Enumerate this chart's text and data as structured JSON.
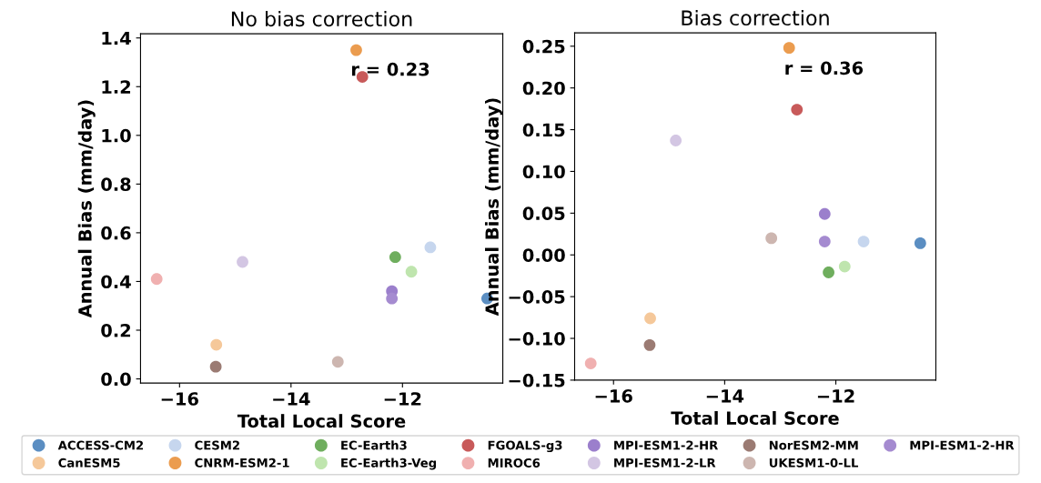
{
  "chart_data": [
    {
      "type": "scatter",
      "title": "No bias correction",
      "xlabel": "Total Local Score",
      "ylabel": "Annual Bias (mm/day)",
      "xlim": [
        -16.7,
        -10.2
      ],
      "xticks": [
        {
          "value": -16,
          "label": "−16"
        },
        {
          "value": -14,
          "label": "−14"
        },
        {
          "value": -12,
          "label": "−12"
        }
      ],
      "ylim": [
        -0.017,
        1.417
      ],
      "yticks": [
        {
          "value": 0,
          "label": "0.0"
        },
        {
          "value": 0.2,
          "label": "0.2"
        },
        {
          "value": 0.4,
          "label": "0.4"
        },
        {
          "value": 0.6,
          "label": "0.6"
        },
        {
          "value": 0.8,
          "label": "0.8"
        },
        {
          "value": 1.0,
          "label": "1.0"
        },
        {
          "value": 1.2,
          "label": "1.2"
        },
        {
          "value": 1.4,
          "label": "1.4"
        }
      ],
      "grid": false,
      "marker": "circle",
      "legend": "bottom",
      "annotations": [
        "r = 0.23"
      ],
      "series": [
        {
          "name": "ACCESS-CM2",
          "color": "#5b8ec2",
          "x": [
            -10.48
          ],
          "values": [
            0.33
          ]
        },
        {
          "name": "CanESM5",
          "color": "#f5c89a",
          "x": [
            -15.34
          ],
          "values": [
            0.14
          ]
        },
        {
          "name": "CESM2",
          "color": "#c6d6ee",
          "x": [
            -11.5
          ],
          "values": [
            0.54
          ]
        },
        {
          "name": "CNRM-ESM2-1",
          "color": "#eb9c4f",
          "x": [
            -12.83
          ],
          "values": [
            1.35
          ]
        },
        {
          "name": "EC-Earth3",
          "color": "#6fae5e",
          "x": [
            -12.13
          ],
          "values": [
            0.5
          ]
        },
        {
          "name": "EC-Earth3-Veg",
          "color": "#bfe5ae",
          "x": [
            -11.84
          ],
          "values": [
            0.44
          ]
        },
        {
          "name": "FGOALS-g3",
          "color": "#c85a5a",
          "x": [
            -12.72
          ],
          "values": [
            1.24
          ]
        },
        {
          "name": "MIROC6",
          "color": "#f0b0b0",
          "x": [
            -16.41
          ],
          "values": [
            0.41
          ]
        },
        {
          "name": "MPI-ESM1-2-HR",
          "color": "#9b7fcc",
          "x": [
            -12.19
          ],
          "values": [
            0.36
          ]
        },
        {
          "name": "MPI-ESM1-2-LR",
          "color": "#d3c6e3",
          "x": [
            -14.87
          ],
          "values": [
            0.48
          ]
        },
        {
          "name": "NorESM2-MM",
          "color": "#9b7b73",
          "x": [
            -15.35
          ],
          "values": [
            0.05
          ]
        },
        {
          "name": "UKESM1-0-LL",
          "color": "#cdb6b0",
          "x": [
            -13.16
          ],
          "values": [
            0.07
          ]
        },
        {
          "name": "MPI-ESM1-2-HR",
          "color": "#a58bd0",
          "x": [
            -12.19
          ],
          "values": [
            0.33
          ]
        }
      ]
    },
    {
      "type": "scatter",
      "title": "Bias correction",
      "xlabel": "Total Local Score",
      "ylabel": "Annual Bias (mm/day)",
      "xlim": [
        -16.7,
        -10.2
      ],
      "xticks": [
        {
          "value": -16,
          "label": "−16"
        },
        {
          "value": -14,
          "label": "−14"
        },
        {
          "value": -12,
          "label": "−12"
        }
      ],
      "ylim": [
        -0.15,
        0.266
      ],
      "yticks": [
        {
          "value": -0.15,
          "label": "−0.15"
        },
        {
          "value": -0.1,
          "label": "−0.10"
        },
        {
          "value": -0.05,
          "label": "−0.05"
        },
        {
          "value": 0,
          "label": "0.00"
        },
        {
          "value": 0.05,
          "label": "0.05"
        },
        {
          "value": 0.1,
          "label": "0.10"
        },
        {
          "value": 0.15,
          "label": "0.15"
        },
        {
          "value": 0.2,
          "label": "0.20"
        },
        {
          "value": 0.25,
          "label": "0.25"
        }
      ],
      "grid": false,
      "marker": "circle",
      "annotations": [
        "r = 0.36"
      ],
      "series": [
        {
          "color": "#5b8ec2",
          "x": [
            -10.48
          ],
          "values": [
            0.014
          ]
        },
        {
          "color": "#f5c89a",
          "x": [
            -15.34
          ],
          "values": [
            -0.076
          ]
        },
        {
          "color": "#c6d6ee",
          "x": [
            -11.5
          ],
          "values": [
            0.016
          ]
        },
        {
          "color": "#eb9c4f",
          "x": [
            -12.84
          ],
          "values": [
            0.248
          ]
        },
        {
          "color": "#6fae5e",
          "x": [
            -12.13
          ],
          "values": [
            -0.021
          ]
        },
        {
          "color": "#bfe5ae",
          "x": [
            -11.84
          ],
          "values": [
            -0.014
          ]
        },
        {
          "color": "#c85a5a",
          "x": [
            -12.7
          ],
          "values": [
            0.174
          ]
        },
        {
          "color": "#f0b0b0",
          "x": [
            -16.41
          ],
          "values": [
            -0.13
          ]
        },
        {
          "color": "#9b7fcc",
          "x": [
            -12.2
          ],
          "values": [
            0.049
          ]
        },
        {
          "color": "#d3c6e3",
          "x": [
            -14.88
          ],
          "values": [
            0.137
          ]
        },
        {
          "color": "#9b7b73",
          "x": [
            -15.35
          ],
          "values": [
            -0.108
          ]
        },
        {
          "color": "#cdb6b0",
          "x": [
            -13.16
          ],
          "values": [
            0.02
          ]
        },
        {
          "color": "#a58bd0",
          "x": [
            -12.2
          ],
          "values": [
            0.016
          ]
        }
      ]
    }
  ]
}
